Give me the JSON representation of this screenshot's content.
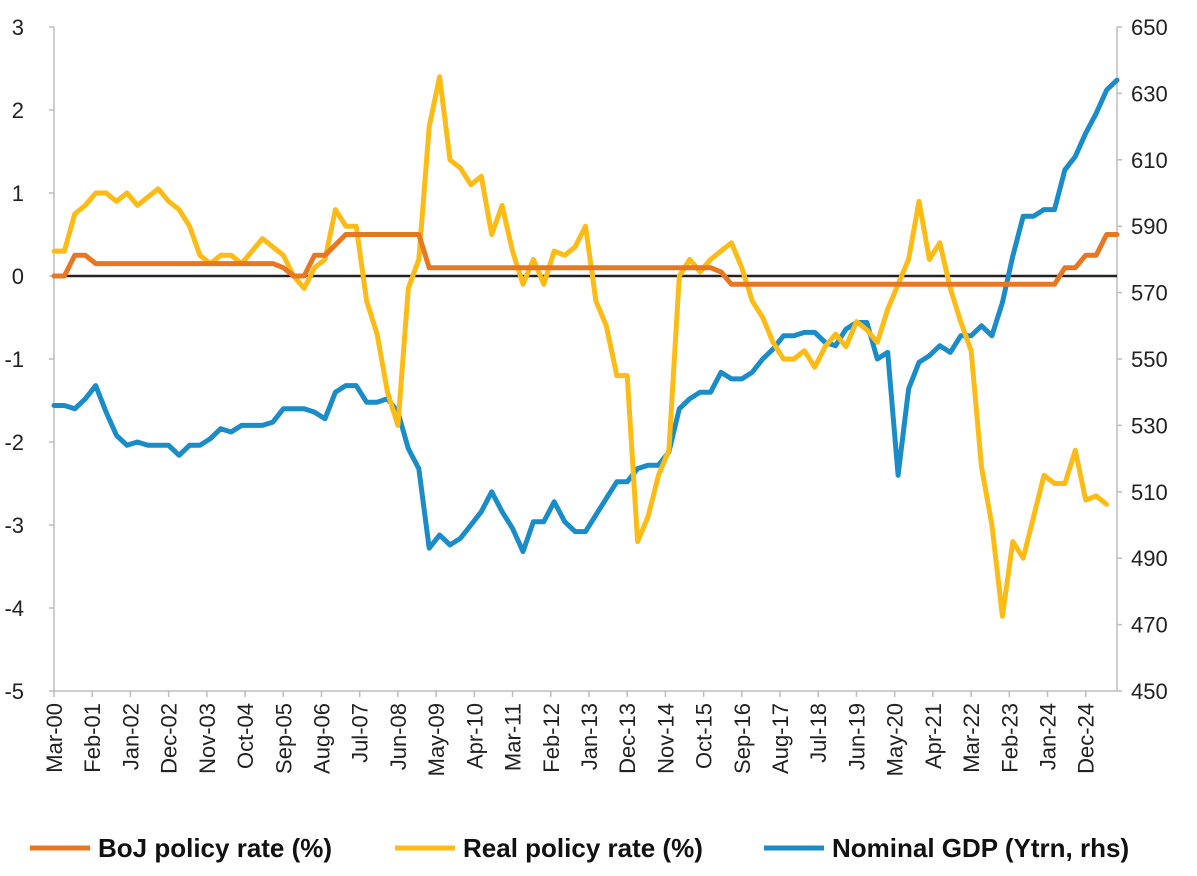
{
  "chart_data": {
    "type": "line",
    "title": "",
    "xlabel": "",
    "ylabel": "",
    "ylim": [
      -5,
      3
    ],
    "y2lim": [
      450,
      650
    ],
    "y_ticks": [
      "3",
      "2",
      "1",
      "0",
      "-1",
      "-2",
      "-3",
      "-4",
      "-5"
    ],
    "y2_ticks": [
      "650",
      "630",
      "610",
      "590",
      "570",
      "550",
      "530",
      "510",
      "490",
      "470",
      "450"
    ],
    "x_ticks": [
      "Mar-00",
      "Feb-01",
      "Jan-02",
      "Dec-02",
      "Nov-03",
      "Oct-04",
      "Sep-05",
      "Aug-06",
      "Jul-07",
      "Jun-08",
      "May-09",
      "Apr-10",
      "Mar-11",
      "Feb-12",
      "Jan-13",
      "Dec-13",
      "Nov-14",
      "Oct-15",
      "Sep-16",
      "Aug-17",
      "Jul-18",
      "Jun-19",
      "May-20",
      "Apr-21",
      "Mar-22",
      "Feb-23",
      "Jan-24",
      "Dec-24"
    ],
    "x_range_quarters": [
      0,
      102
    ],
    "legend_position": "bottom",
    "series": [
      {
        "name": "BoJ policy rate (%)",
        "color": "#E87722",
        "axis": "left",
        "points": [
          [
            0,
            0.0
          ],
          [
            1,
            0.0
          ],
          [
            2,
            0.25
          ],
          [
            3,
            0.25
          ],
          [
            4,
            0.15
          ],
          [
            21,
            0.15
          ],
          [
            22,
            0.1
          ],
          [
            23,
            0.0
          ],
          [
            24,
            0.0
          ],
          [
            25,
            0.25
          ],
          [
            26,
            0.25
          ],
          [
            28,
            0.5
          ],
          [
            35,
            0.5
          ],
          [
            36,
            0.1
          ],
          [
            63,
            0.1
          ],
          [
            64,
            0.05
          ],
          [
            65,
            -0.1
          ],
          [
            91,
            -0.1
          ],
          [
            96,
            -0.1
          ],
          [
            97,
            0.1
          ],
          [
            98,
            0.1
          ],
          [
            99,
            0.25
          ],
          [
            100,
            0.25
          ],
          [
            101,
            0.5
          ],
          [
            102,
            0.5
          ]
        ]
      },
      {
        "name": "Real policy rate (%)",
        "color": "#FDBB16",
        "axis": "left",
        "points": [
          [
            0,
            0.3
          ],
          [
            1,
            0.3
          ],
          [
            2,
            0.75
          ],
          [
            3,
            0.85
          ],
          [
            4,
            1.0
          ],
          [
            5,
            1.0
          ],
          [
            6,
            0.9
          ],
          [
            7,
            1.0
          ],
          [
            8,
            0.85
          ],
          [
            9,
            0.95
          ],
          [
            10,
            1.05
          ],
          [
            11,
            0.9
          ],
          [
            12,
            0.8
          ],
          [
            13,
            0.6
          ],
          [
            14,
            0.25
          ],
          [
            15,
            0.15
          ],
          [
            16,
            0.25
          ],
          [
            17,
            0.25
          ],
          [
            18,
            0.15
          ],
          [
            19,
            0.3
          ],
          [
            20,
            0.45
          ],
          [
            21,
            0.35
          ],
          [
            22,
            0.25
          ],
          [
            23,
            0.0
          ],
          [
            24,
            -0.15
          ],
          [
            25,
            0.1
          ],
          [
            26,
            0.2
          ],
          [
            27,
            0.8
          ],
          [
            28,
            0.6
          ],
          [
            29,
            0.6
          ],
          [
            30,
            -0.3
          ],
          [
            31,
            -0.7
          ],
          [
            32,
            -1.4
          ],
          [
            33,
            -1.8
          ],
          [
            34,
            -0.15
          ],
          [
            35,
            0.2
          ],
          [
            36,
            1.8
          ],
          [
            37,
            2.4
          ],
          [
            38,
            1.4
          ],
          [
            39,
            1.3
          ],
          [
            40,
            1.1
          ],
          [
            41,
            1.2
          ],
          [
            42,
            0.5
          ],
          [
            43,
            0.85
          ],
          [
            44,
            0.3
          ],
          [
            45,
            -0.1
          ],
          [
            46,
            0.2
          ],
          [
            47,
            -0.1
          ],
          [
            48,
            0.3
          ],
          [
            49,
            0.25
          ],
          [
            50,
            0.35
          ],
          [
            51,
            0.6
          ],
          [
            52,
            -0.3
          ],
          [
            53,
            -0.6
          ],
          [
            54,
            -1.2
          ],
          [
            55,
            -1.2
          ],
          [
            56,
            -3.2
          ],
          [
            57,
            -2.9
          ],
          [
            58,
            -2.4
          ],
          [
            59,
            -2.1
          ],
          [
            60,
            0.0
          ],
          [
            61,
            0.2
          ],
          [
            62,
            0.05
          ],
          [
            63,
            0.2
          ],
          [
            64,
            0.3
          ],
          [
            65,
            0.4
          ],
          [
            66,
            0.1
          ],
          [
            67,
            -0.3
          ],
          [
            68,
            -0.5
          ],
          [
            69,
            -0.8
          ],
          [
            70,
            -1.0
          ],
          [
            71,
            -1.0
          ],
          [
            72,
            -0.9
          ],
          [
            73,
            -1.1
          ],
          [
            74,
            -0.85
          ],
          [
            75,
            -0.7
          ],
          [
            76,
            -0.85
          ],
          [
            77,
            -0.55
          ],
          [
            78,
            -0.65
          ],
          [
            79,
            -0.8
          ],
          [
            80,
            -0.4
          ],
          [
            81,
            -0.1
          ],
          [
            82,
            0.2
          ],
          [
            83,
            0.9
          ],
          [
            84,
            0.2
          ],
          [
            85,
            0.4
          ],
          [
            86,
            -0.15
          ],
          [
            87,
            -0.55
          ],
          [
            88,
            -0.9
          ],
          [
            89,
            -2.3
          ],
          [
            90,
            -3.0
          ],
          [
            91,
            -4.1
          ],
          [
            92,
            -3.2
          ],
          [
            93,
            -3.4
          ],
          [
            94,
            -2.9
          ],
          [
            95,
            -2.4
          ],
          [
            96,
            -2.5
          ],
          [
            97,
            -2.5
          ],
          [
            98,
            -2.1
          ],
          [
            99,
            -2.7
          ],
          [
            100,
            -2.65
          ],
          [
            101,
            -2.75
          ]
        ]
      },
      {
        "name": "Nominal GDP (Ytrn, rhs)",
        "color": "#1A8CC7",
        "axis": "right",
        "points": [
          [
            0,
            536
          ],
          [
            1,
            536
          ],
          [
            2,
            535
          ],
          [
            3,
            538
          ],
          [
            4,
            542
          ],
          [
            5,
            534
          ],
          [
            6,
            527
          ],
          [
            7,
            524
          ],
          [
            8,
            525
          ],
          [
            9,
            524
          ],
          [
            10,
            524
          ],
          [
            11,
            524
          ],
          [
            12,
            521
          ],
          [
            13,
            524
          ],
          [
            14,
            524
          ],
          [
            15,
            526
          ],
          [
            16,
            529
          ],
          [
            17,
            528
          ],
          [
            18,
            530
          ],
          [
            19,
            530
          ],
          [
            20,
            530
          ],
          [
            21,
            531
          ],
          [
            22,
            535
          ],
          [
            23,
            535
          ],
          [
            24,
            535
          ],
          [
            25,
            534
          ],
          [
            26,
            532
          ],
          [
            27,
            540
          ],
          [
            28,
            542
          ],
          [
            29,
            542
          ],
          [
            30,
            537
          ],
          [
            31,
            537
          ],
          [
            32,
            538
          ],
          [
            33,
            534
          ],
          [
            34,
            523
          ],
          [
            35,
            517
          ],
          [
            36,
            493
          ],
          [
            37,
            497
          ],
          [
            38,
            494
          ],
          [
            39,
            496
          ],
          [
            40,
            500
          ],
          [
            41,
            504
          ],
          [
            42,
            510
          ],
          [
            43,
            504
          ],
          [
            44,
            499
          ],
          [
            45,
            492
          ],
          [
            46,
            501
          ],
          [
            47,
            501
          ],
          [
            48,
            507
          ],
          [
            49,
            501
          ],
          [
            50,
            498
          ],
          [
            51,
            498
          ],
          [
            52,
            503
          ],
          [
            53,
            508
          ],
          [
            54,
            513
          ],
          [
            55,
            513
          ],
          [
            56,
            517
          ],
          [
            57,
            518
          ],
          [
            58,
            518
          ],
          [
            59,
            522
          ],
          [
            60,
            535
          ],
          [
            61,
            538
          ],
          [
            62,
            540
          ],
          [
            63,
            540
          ],
          [
            64,
            546
          ],
          [
            65,
            544
          ],
          [
            66,
            544
          ],
          [
            67,
            546
          ],
          [
            68,
            550
          ],
          [
            69,
            553
          ],
          [
            70,
            557
          ],
          [
            71,
            557
          ],
          [
            72,
            558
          ],
          [
            73,
            558
          ],
          [
            74,
            555
          ],
          [
            75,
            554
          ],
          [
            76,
            559
          ],
          [
            77,
            561
          ],
          [
            78,
            561
          ],
          [
            79,
            550
          ],
          [
            80,
            552
          ],
          [
            81,
            515
          ],
          [
            82,
            541
          ],
          [
            83,
            549
          ],
          [
            84,
            551
          ],
          [
            85,
            554
          ],
          [
            86,
            552
          ],
          [
            87,
            557
          ],
          [
            88,
            557
          ],
          [
            89,
            560
          ],
          [
            90,
            557
          ],
          [
            91,
            567
          ],
          [
            92,
            581
          ],
          [
            93,
            593
          ],
          [
            94,
            593
          ],
          [
            95,
            595
          ],
          [
            96,
            595
          ],
          [
            97,
            607
          ],
          [
            98,
            611
          ],
          [
            99,
            618
          ],
          [
            100,
            624
          ],
          [
            101,
            631
          ],
          [
            102,
            634
          ]
        ]
      }
    ]
  }
}
